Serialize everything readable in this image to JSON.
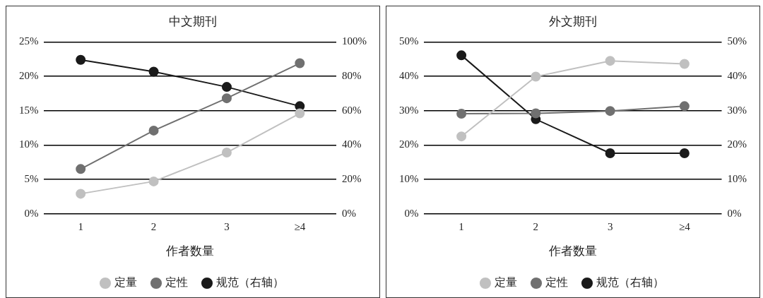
{
  "chart_data": [
    {
      "type": "line",
      "title": "中文期刊",
      "xlabel": "作者数量",
      "categories": [
        "1",
        "2",
        "3",
        "≥4"
      ],
      "series": [
        {
          "name": "定量",
          "color": "#c0c0c0",
          "values": [
            2.9,
            4.7,
            8.9,
            14.6
          ]
        },
        {
          "name": "定性",
          "color": "#707070",
          "values": [
            6.5,
            12.1,
            16.8,
            21.9
          ]
        },
        {
          "name": "规范（右轴）",
          "color": "#1a1a1a",
          "values": [
            89.6,
            82.7,
            73.8,
            62.6
          ],
          "axis": "y2"
        }
      ],
      "ylim": [
        0,
        25
      ],
      "yticks": [
        {
          "value": 0,
          "label": "0%"
        },
        {
          "value": 5,
          "label": "5%"
        },
        {
          "value": 10,
          "label": "10%"
        },
        {
          "value": 15,
          "label": "15%"
        },
        {
          "value": 20,
          "label": "20%"
        },
        {
          "value": 25,
          "label": "25%"
        }
      ],
      "y2lim": [
        0,
        100
      ],
      "y2ticks": [
        {
          "value": 0,
          "label": "0%"
        },
        {
          "value": 20,
          "label": "20%"
        },
        {
          "value": 40,
          "label": "40%"
        },
        {
          "value": 60,
          "label": "60%"
        },
        {
          "value": 80,
          "label": "80%"
        },
        {
          "value": 100,
          "label": "100%"
        }
      ],
      "grid": "y",
      "legend": "bottom",
      "marker": "circle",
      "line_style": "solid"
    },
    {
      "type": "line",
      "title": "外文期刊",
      "xlabel": "作者数量",
      "categories": [
        "1",
        "2",
        "3",
        "≥4"
      ],
      "series": [
        {
          "name": "定量",
          "color": "#c0c0c0",
          "values": [
            22.5,
            39.9,
            44.5,
            43.6
          ]
        },
        {
          "name": "定性",
          "color": "#707070",
          "values": [
            29.1,
            29.2,
            29.9,
            31.3
          ]
        },
        {
          "name": "规范（右轴）",
          "color": "#1a1a1a",
          "values": [
            46.1,
            27.5,
            17.6,
            17.6
          ],
          "axis": "y2"
        }
      ],
      "ylim": [
        0,
        50
      ],
      "yticks": [
        {
          "value": 0,
          "label": "0%"
        },
        {
          "value": 10,
          "label": "10%"
        },
        {
          "value": 20,
          "label": "20%"
        },
        {
          "value": 30,
          "label": "30%"
        },
        {
          "value": 40,
          "label": "40%"
        },
        {
          "value": 50,
          "label": "50%"
        }
      ],
      "y2lim": [
        0,
        50
      ],
      "y2ticks": [
        {
          "value": 0,
          "label": "0%"
        },
        {
          "value": 10,
          "label": "10%"
        },
        {
          "value": 20,
          "label": "20%"
        },
        {
          "value": 30,
          "label": "30%"
        },
        {
          "value": 40,
          "label": "40%"
        },
        {
          "value": 50,
          "label": "50%"
        }
      ],
      "grid": "y",
      "legend": "bottom",
      "marker": "circle",
      "line_style": "solid"
    }
  ]
}
